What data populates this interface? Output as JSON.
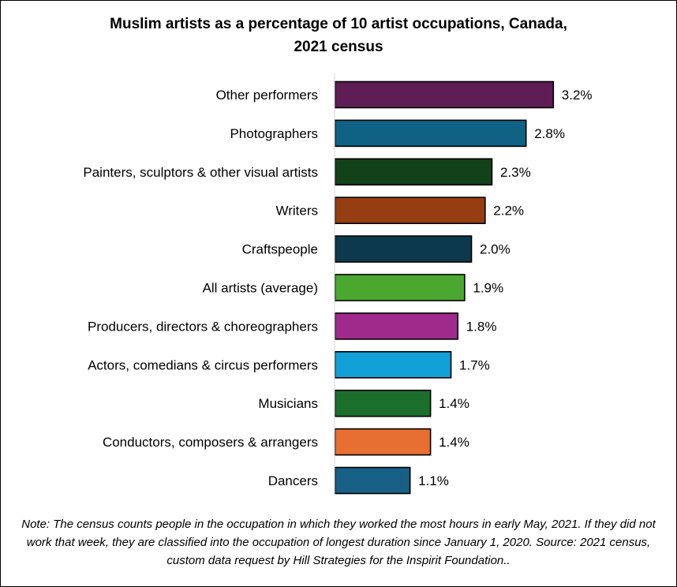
{
  "chart_data": {
    "type": "bar",
    "orientation": "horizontal",
    "title_line1": "Muslim artists as a percentage of 10 artist occupations, Canada,",
    "title_line2": "2021 census",
    "xlabel": "",
    "ylabel": "",
    "xlim": [
      0,
      3.5
    ],
    "grid": false,
    "legend": "none",
    "categories": [
      "Other performers",
      "Photographers",
      "Painters, sculptors & other visual artists",
      "Writers",
      "Craftspeople",
      "All artists (average)",
      "Producers, directors & choreographers",
      "Actors, comedians & circus performers",
      "Musicians",
      "Conductors, composers & arrangers",
      "Dancers"
    ],
    "values": [
      3.2,
      2.8,
      2.3,
      2.2,
      2.0,
      1.9,
      1.8,
      1.7,
      1.4,
      1.4,
      1.1
    ],
    "value_labels": [
      "3.2%",
      "2.8%",
      "2.3%",
      "2.2%",
      "2.0%",
      "1.9%",
      "1.8%",
      "1.7%",
      "1.4%",
      "1.4%",
      "1.1%"
    ],
    "colors": [
      "#5e1d55",
      "#0f6284",
      "#13421a",
      "#963d11",
      "#0d394f",
      "#4aa730",
      "#a02a8c",
      "#11a0d8",
      "#1c6e2c",
      "#e76f31",
      "#185f85"
    ]
  },
  "note": "Note: The census counts people in the occupation in which they worked the most hours in early May, 2021. If they did not work that week, they are classified into the occupation of longest duration since January 1, 2020. Source: 2021 census, custom data request by Hill Strategies for the Inspirit Foundation.."
}
